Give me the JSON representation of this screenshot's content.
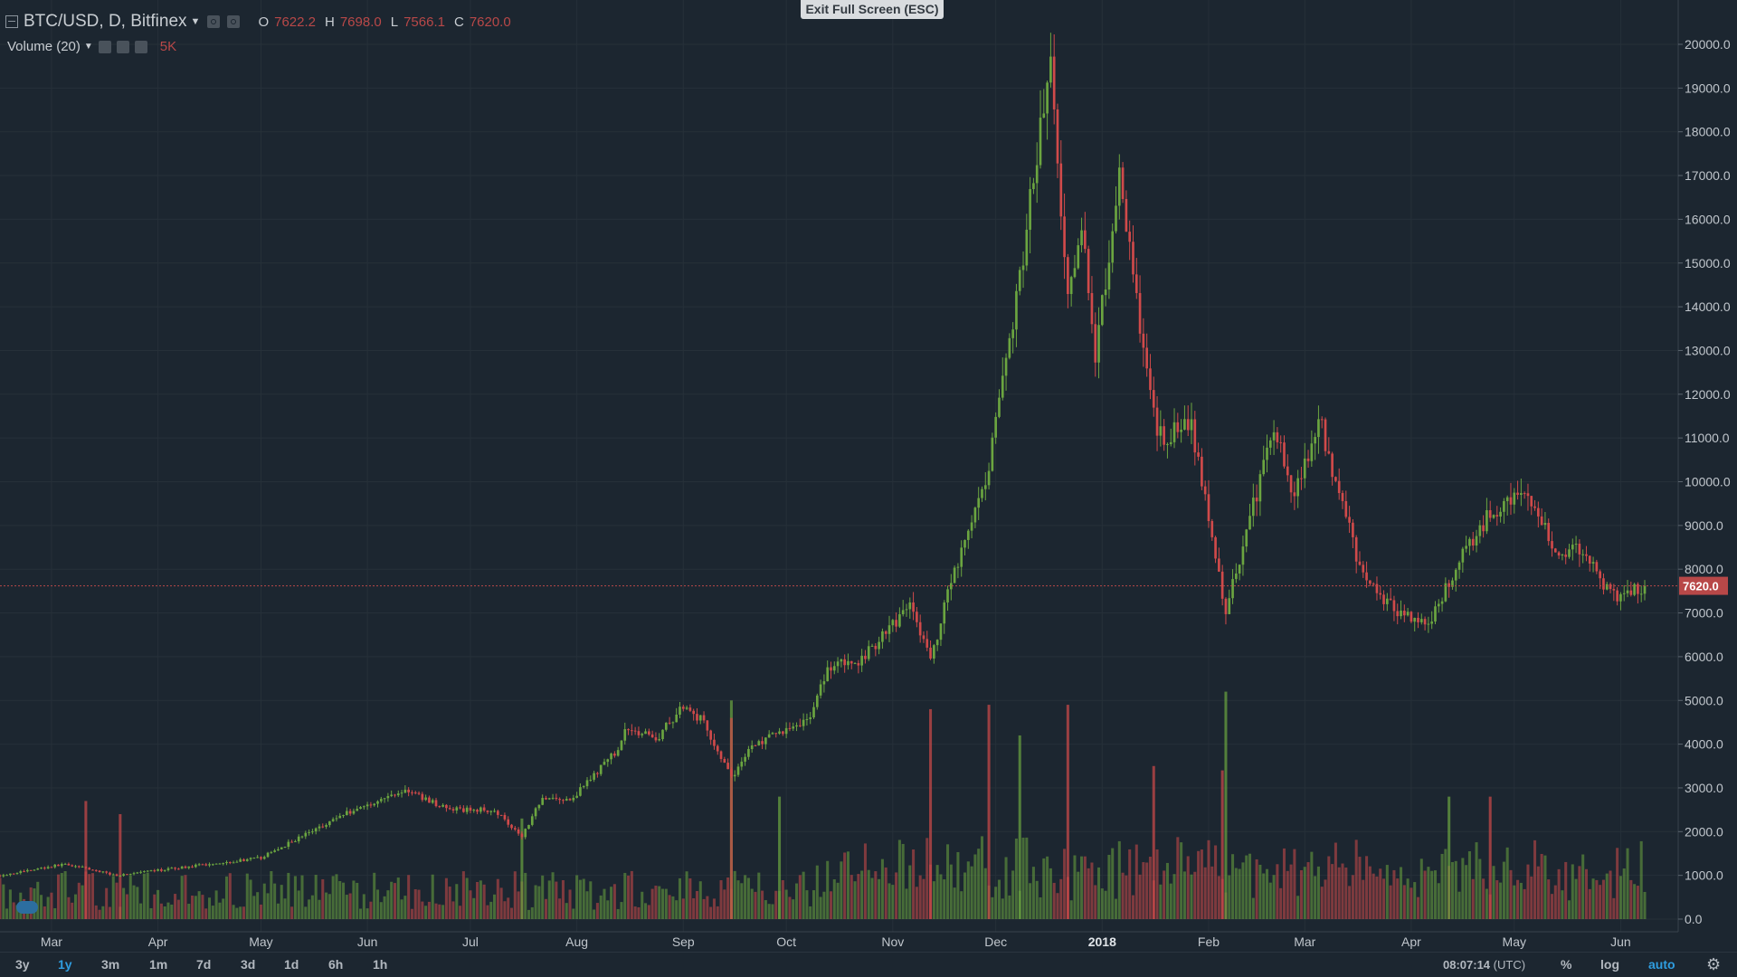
{
  "exit_fullscreen_label": "Exit Full Screen (ESC)",
  "legend": {
    "symbol": "BTC/USD, D, Bitfinex",
    "open_key": "O",
    "open": "7622.2",
    "high_key": "H",
    "high": "7698.0",
    "low_key": "L",
    "low": "7566.1",
    "close_key": "C",
    "close": "7620.0"
  },
  "volume_legend": {
    "label": "Volume (20)",
    "value": "5K"
  },
  "bottom_bar": {
    "ranges": [
      "3y",
      "1y",
      "3m",
      "1m",
      "7d",
      "3d",
      "1d",
      "6h",
      "1h"
    ],
    "active_range": "1y",
    "time": "08:07:14",
    "timezone": "(UTC)",
    "percent": "%",
    "log": "log",
    "auto": "auto"
  },
  "colors": {
    "up": "#6ba540",
    "down": "#d04a4a",
    "price_line": "#b84848"
  },
  "chart_data": {
    "type": "candlestick",
    "title": "BTC/USD, D, Bitfinex",
    "x_ticks": [
      "Mar",
      "Apr",
      "May",
      "Jun",
      "Jul",
      "Aug",
      "Sep",
      "Oct",
      "Nov",
      "Dec",
      "2018",
      "Feb",
      "Mar",
      "Apr",
      "May",
      "Jun"
    ],
    "x_tick_dates": [
      "2017-03-01",
      "2017-04-01",
      "2017-05-01",
      "2017-06-01",
      "2017-07-01",
      "2017-08-01",
      "2017-09-01",
      "2017-10-01",
      "2017-11-01",
      "2017-12-01",
      "2018-01-01",
      "2018-02-01",
      "2018-03-01",
      "2018-04-01",
      "2018-05-01",
      "2018-06-01"
    ],
    "y_ticks": [
      "20000.0",
      "19000.0",
      "18000.0",
      "17000.0",
      "16000.0",
      "15000.0",
      "14000.0",
      "13000.0",
      "12000.0",
      "11000.0",
      "10000.0",
      "9000.0",
      "8000.0",
      "7000.0",
      "6000.0",
      "5000.0",
      "4000.0",
      "3000.0",
      "2000.0",
      "1000.0",
      "0.0"
    ],
    "ylim": [
      0,
      20000
    ],
    "x_range": [
      "2017-02-14",
      "2018-06-08"
    ],
    "last_price": 7620.0,
    "price_anchors": [
      [
        "2017-02-14",
        1000
      ],
      [
        "2017-03-05",
        1260
      ],
      [
        "2017-03-20",
        1000
      ],
      [
        "2017-04-10",
        1200
      ],
      [
        "2017-05-01",
        1400
      ],
      [
        "2017-05-25",
        2400
      ],
      [
        "2017-06-12",
        2950
      ],
      [
        "2017-06-25",
        2500
      ],
      [
        "2017-07-08",
        2500
      ],
      [
        "2017-07-16",
        1900
      ],
      [
        "2017-07-22",
        2800
      ],
      [
        "2017-07-30",
        2700
      ],
      [
        "2017-08-12",
        3800
      ],
      [
        "2017-08-16",
        4400
      ],
      [
        "2017-08-24",
        4100
      ],
      [
        "2017-09-01",
        4900
      ],
      [
        "2017-09-07",
        4500
      ],
      [
        "2017-09-15",
        3200
      ],
      [
        "2017-09-20",
        3900
      ],
      [
        "2017-09-30",
        4300
      ],
      [
        "2017-10-08",
        4600
      ],
      [
        "2017-10-13",
        5800
      ],
      [
        "2017-10-22",
        5900
      ],
      [
        "2017-11-01",
        6700
      ],
      [
        "2017-11-06",
        7300
      ],
      [
        "2017-11-12",
        5900
      ],
      [
        "2017-11-19",
        8000
      ],
      [
        "2017-11-28",
        9900
      ],
      [
        "2017-12-06",
        13500
      ],
      [
        "2017-12-12",
        17000
      ],
      [
        "2017-12-17",
        19500
      ],
      [
        "2017-12-22",
        14000
      ],
      [
        "2017-12-26",
        15800
      ],
      [
        "2017-12-30",
        12800
      ],
      [
        "2018-01-06",
        17100
      ],
      [
        "2018-01-10",
        14500
      ],
      [
        "2018-01-17",
        11000
      ],
      [
        "2018-01-27",
        11300
      ],
      [
        "2018-02-06",
        7000
      ],
      [
        "2018-02-20",
        11300
      ],
      [
        "2018-02-26",
        9600
      ],
      [
        "2018-03-05",
        11500
      ],
      [
        "2018-03-17",
        8000
      ],
      [
        "2018-03-28",
        7000
      ],
      [
        "2018-04-06",
        6700
      ],
      [
        "2018-04-13",
        7900
      ],
      [
        "2018-04-24",
        9300
      ],
      [
        "2018-05-05",
        9800
      ],
      [
        "2018-05-12",
        8500
      ],
      [
        "2018-05-20",
        8400
      ],
      [
        "2018-05-30",
        7400
      ],
      [
        "2018-06-08",
        7620
      ]
    ],
    "volume_axis_max": 5000,
    "volume_spikes": [
      [
        "2017-03-11",
        2700,
        "down"
      ],
      [
        "2017-03-21",
        2400,
        "down"
      ],
      [
        "2017-07-16",
        2300,
        "up"
      ],
      [
        "2017-09-15",
        5000,
        "up"
      ],
      [
        "2017-09-15",
        4600,
        "down"
      ],
      [
        "2017-09-29",
        2800,
        "up"
      ],
      [
        "2017-11-12",
        4800,
        "down"
      ],
      [
        "2017-11-29",
        4900,
        "down"
      ],
      [
        "2017-12-08",
        4200,
        "up"
      ],
      [
        "2017-12-22",
        4900,
        "down"
      ],
      [
        "2018-01-16",
        3500,
        "down"
      ],
      [
        "2018-02-05",
        3400,
        "down"
      ],
      [
        "2018-02-06",
        5200,
        "up"
      ],
      [
        "2018-04-12",
        2800,
        "up"
      ],
      [
        "2018-04-24",
        2800,
        "down"
      ]
    ]
  }
}
